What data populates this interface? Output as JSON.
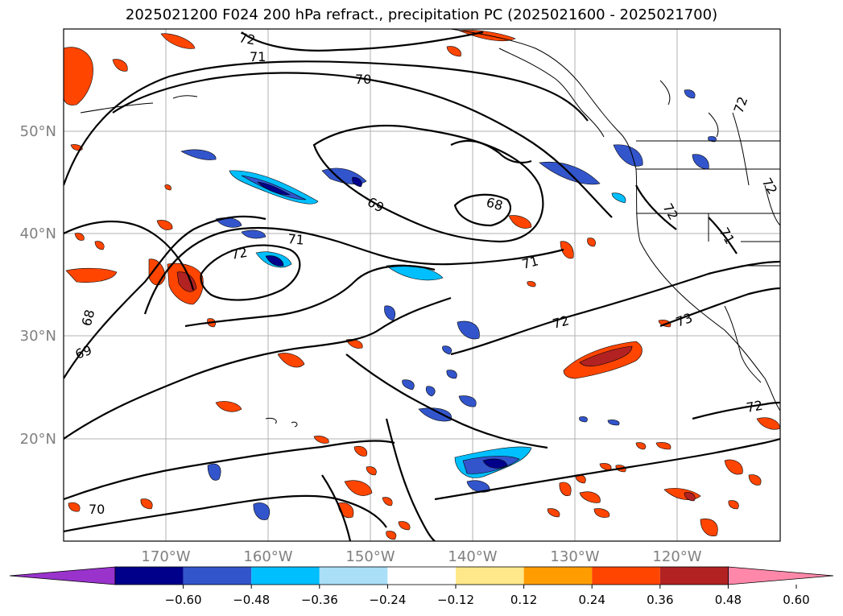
{
  "title": "2025021200 F024 200 hPa refract., precipitation PC (2025021600 - 2025021700)",
  "map": {
    "lat_labels": [
      "50°N",
      "40°N",
      "30°N",
      "20°N"
    ],
    "lon_labels": [
      "170°W",
      "160°W",
      "150°W",
      "140°W",
      "130°W",
      "120°W"
    ],
    "contour_labels": [
      "72",
      "71",
      "70",
      "69",
      "68",
      "72",
      "71",
      "71",
      "69",
      "68",
      "72",
      "72",
      "73",
      "72",
      "72",
      "72",
      "71",
      "70"
    ],
    "axis_label_color": "#808080"
  },
  "colorbar": {
    "colors": [
      "#9933cc",
      "#00008b",
      "#3355cc",
      "#00bfff",
      "#aadff8",
      "#ffffff",
      "#ffe88a",
      "#ff9d00",
      "#ff4500",
      "#b22222",
      "#ff88aa"
    ],
    "ticks": [
      "−0.60",
      "−0.48",
      "−0.36",
      "−0.24",
      "−0.12",
      "0.12",
      "0.24",
      "0.36",
      "0.48",
      "0.60"
    ]
  }
}
